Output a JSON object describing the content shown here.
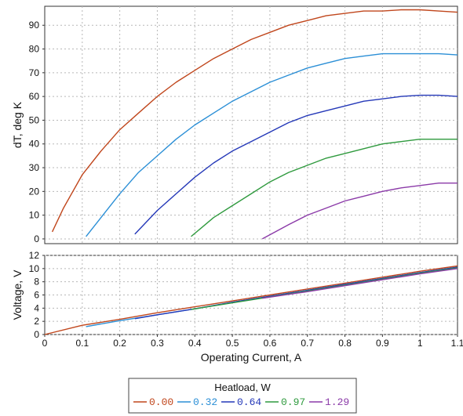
{
  "chart_data": [
    {
      "type": "line",
      "xlabel": "",
      "ylabel": "dT, deg K",
      "xlim": [
        0,
        1.1
      ],
      "ylim": [
        -2,
        98
      ],
      "yticks": [
        "0",
        "10",
        "20",
        "30",
        "40",
        "50",
        "60",
        "70",
        "80",
        "90"
      ],
      "grid": true,
      "series": [
        {
          "name": "0.00",
          "color": "#c0461c",
          "x": [
            0.02,
            0.05,
            0.1,
            0.15,
            0.2,
            0.25,
            0.3,
            0.35,
            0.4,
            0.45,
            0.5,
            0.55,
            0.6,
            0.65,
            0.7,
            0.75,
            0.8,
            0.85,
            0.9,
            0.95,
            1.0,
            1.05,
            1.1
          ],
          "y": [
            3,
            13,
            27,
            37,
            46,
            53,
            60,
            66,
            71,
            76,
            80,
            84,
            87,
            90,
            92,
            94,
            95,
            96,
            96,
            96.5,
            96.5,
            96,
            95.5
          ]
        },
        {
          "name": "0.32",
          "color": "#2b8fd6",
          "x": [
            0.11,
            0.15,
            0.2,
            0.25,
            0.3,
            0.35,
            0.4,
            0.45,
            0.5,
            0.55,
            0.6,
            0.65,
            0.7,
            0.75,
            0.8,
            0.85,
            0.9,
            0.95,
            1.0,
            1.05,
            1.1
          ],
          "y": [
            1,
            9,
            19,
            28,
            35,
            42,
            48,
            53,
            58,
            62,
            66,
            69,
            72,
            74,
            76,
            77,
            78,
            78,
            78,
            78,
            77.5
          ]
        },
        {
          "name": "0.64",
          "color": "#2438b8",
          "x": [
            0.24,
            0.3,
            0.35,
            0.4,
            0.45,
            0.5,
            0.55,
            0.6,
            0.65,
            0.7,
            0.75,
            0.8,
            0.85,
            0.9,
            0.95,
            1.0,
            1.05,
            1.1
          ],
          "y": [
            2,
            12,
            19,
            26,
            32,
            37,
            41,
            45,
            49,
            52,
            54,
            56,
            58,
            59,
            60,
            60.5,
            60.5,
            60
          ]
        },
        {
          "name": "0.97",
          "color": "#2f9a3e",
          "x": [
            0.39,
            0.45,
            0.5,
            0.55,
            0.6,
            0.65,
            0.7,
            0.75,
            0.8,
            0.85,
            0.9,
            0.95,
            1.0,
            1.05,
            1.1
          ],
          "y": [
            1,
            9,
            14,
            19,
            24,
            28,
            31,
            34,
            36,
            38,
            40,
            41,
            42,
            42,
            42
          ]
        },
        {
          "name": "1.29",
          "color": "#8b3aa8",
          "x": [
            0.58,
            0.65,
            0.7,
            0.75,
            0.8,
            0.85,
            0.9,
            0.95,
            1.0,
            1.05,
            1.1
          ],
          "y": [
            0,
            6,
            10,
            13,
            16,
            18,
            20,
            21.5,
            22.5,
            23.5,
            23.5
          ]
        }
      ]
    },
    {
      "type": "line",
      "xlabel": "Operating Current, A",
      "ylabel": "Voltage, V",
      "xlim": [
        0,
        1.1
      ],
      "ylim": [
        0,
        12
      ],
      "xticks": [
        "0",
        "0.1",
        "0.2",
        "0.3",
        "0.4",
        "0.5",
        "0.6",
        "0.7",
        "0.8",
        "0.9",
        "1",
        "1.1"
      ],
      "yticks": [
        "0",
        "2",
        "4",
        "6",
        "8",
        "10",
        "12"
      ],
      "grid": true,
      "series": [
        {
          "name": "0.00",
          "color": "#c0461c",
          "x": [
            0.0,
            0.1,
            0.2,
            0.3,
            0.4,
            0.5,
            0.6,
            0.7,
            0.8,
            0.9,
            1.0,
            1.1
          ],
          "y": [
            0,
            1.4,
            2.3,
            3.3,
            4.2,
            5.1,
            6.0,
            6.9,
            7.8,
            8.7,
            9.6,
            10.4
          ]
        },
        {
          "name": "0.32",
          "color": "#2b8fd6",
          "x": [
            0.11,
            0.2,
            0.3,
            0.4,
            0.5,
            0.6,
            0.7,
            0.8,
            0.9,
            1.0,
            1.1
          ],
          "y": [
            1.2,
            2.1,
            3.0,
            3.9,
            4.9,
            5.8,
            6.7,
            7.6,
            8.5,
            9.4,
            10.2
          ]
        },
        {
          "name": "0.64",
          "color": "#2438b8",
          "x": [
            0.24,
            0.3,
            0.4,
            0.5,
            0.6,
            0.7,
            0.8,
            0.9,
            1.0,
            1.1
          ],
          "y": [
            2.4,
            3.0,
            3.9,
            4.9,
            5.8,
            6.7,
            7.6,
            8.5,
            9.4,
            10.2
          ]
        },
        {
          "name": "0.97",
          "color": "#2f9a3e",
          "x": [
            0.39,
            0.5,
            0.6,
            0.7,
            0.8,
            0.9,
            1.0,
            1.1
          ],
          "y": [
            3.8,
            4.8,
            5.7,
            6.6,
            7.5,
            8.4,
            9.3,
            10.1
          ]
        },
        {
          "name": "1.29",
          "color": "#8b3aa8",
          "x": [
            0.58,
            0.7,
            0.8,
            0.9,
            1.0,
            1.1
          ],
          "y": [
            5.5,
            6.5,
            7.4,
            8.3,
            9.2,
            10.0
          ]
        }
      ]
    }
  ],
  "legend": {
    "title": "Heatload, W",
    "placement": "bottom-center",
    "entries": [
      {
        "label": "0.00",
        "color": "#c0461c"
      },
      {
        "label": "0.32",
        "color": "#2b8fd6"
      },
      {
        "label": "0.64",
        "color": "#2438b8"
      },
      {
        "label": "0.97",
        "color": "#2f9a3e"
      },
      {
        "label": "1.29",
        "color": "#8b3aa8"
      }
    ]
  }
}
